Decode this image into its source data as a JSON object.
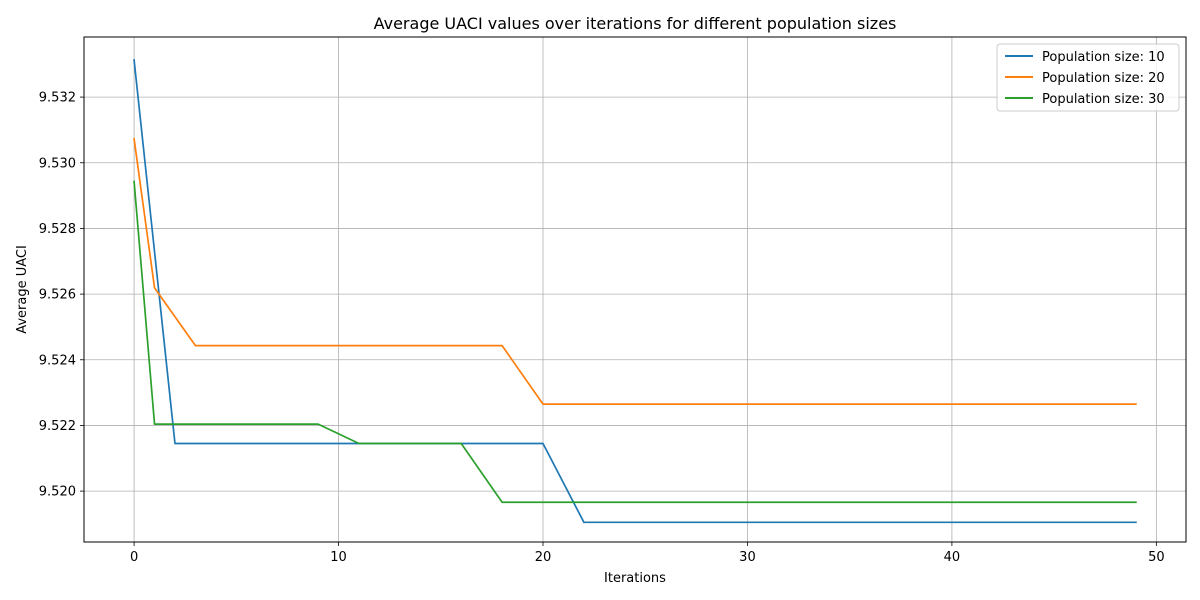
{
  "chart_data": {
    "type": "line",
    "title": "Average UACI values over iterations for different population sizes",
    "xlabel": "Iterations",
    "ylabel": "Average UACI",
    "xlim": [
      -2.45,
      51.45
    ],
    "ylim": [
      9.51845,
      9.53383
    ],
    "xticks": [
      0,
      10,
      20,
      30,
      40,
      50
    ],
    "xtick_labels": [
      "0",
      "10",
      "20",
      "30",
      "40",
      "50"
    ],
    "yticks": [
      9.52,
      9.522,
      9.524,
      9.526,
      9.528,
      9.53,
      9.532
    ],
    "ytick_labels": [
      "9.520",
      "9.522",
      "9.524",
      "9.526",
      "9.528",
      "9.530",
      "9.532"
    ],
    "grid": true,
    "legend_position": "top-right",
    "series": [
      {
        "name": "Population size: 10",
        "color": "#1f77b4",
        "points": [
          [
            0,
            9.53313
          ],
          [
            2,
            9.52145
          ],
          [
            20,
            9.52145
          ],
          [
            22,
            9.51905
          ],
          [
            49,
            9.51905
          ]
        ]
      },
      {
        "name": "Population size: 20",
        "color": "#ff7f0e",
        "points": [
          [
            0,
            9.53073
          ],
          [
            1,
            9.52619
          ],
          [
            3,
            9.52443
          ],
          [
            18,
            9.52443
          ],
          [
            20,
            9.52265
          ],
          [
            49,
            9.52265
          ]
        ]
      },
      {
        "name": "Population size: 30",
        "color": "#2ca02c",
        "points": [
          [
            0,
            9.52943
          ],
          [
            1,
            9.52204
          ],
          [
            9,
            9.52204
          ],
          [
            11,
            9.52145
          ],
          [
            16,
            9.52145
          ],
          [
            18,
            9.51966
          ],
          [
            49,
            9.51966
          ]
        ]
      }
    ]
  }
}
